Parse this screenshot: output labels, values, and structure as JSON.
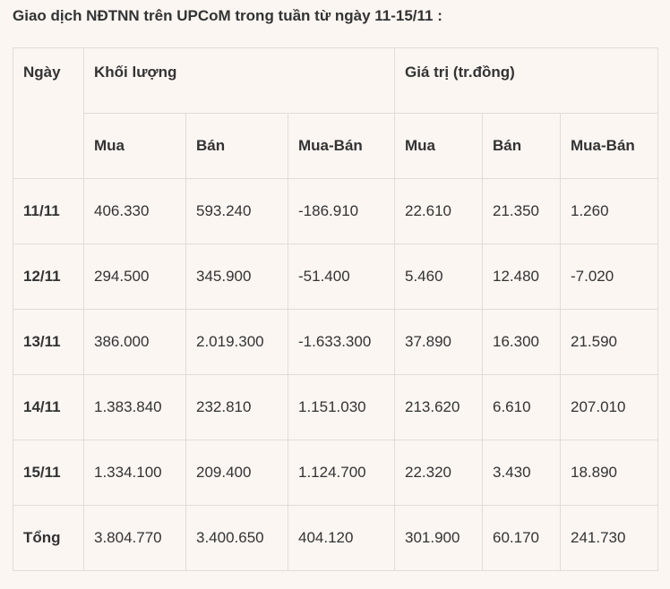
{
  "caption": "Giao dịch NĐTNN trên UPCoM trong tuần từ ngày 11-15/11 :",
  "table": {
    "header": {
      "day": "Ngày",
      "volume_group": "Khối lượng",
      "value_group": "Giá trị (tr.đồng)",
      "sub": [
        "Mua",
        "Bán",
        "Mua-Bán",
        "Mua",
        "Bán",
        "Mua-Bán"
      ]
    },
    "rows": [
      [
        "11/11",
        "406.330",
        "593.240",
        "-186.910",
        "22.610",
        "21.350",
        "1.260"
      ],
      [
        "12/11",
        "294.500",
        "345.900",
        "-51.400",
        "5.460",
        "12.480",
        "-7.020"
      ],
      [
        "13/11",
        "386.000",
        "2.019.300",
        "-1.633.300",
        "37.890",
        "16.300",
        "21.590"
      ],
      [
        "14/11",
        "1.383.840",
        "232.810",
        "1.151.030",
        "213.620",
        "6.610",
        "207.010"
      ],
      [
        "15/11",
        "1.334.100",
        "209.400",
        "1.124.700",
        "22.320",
        "3.430",
        "18.890"
      ],
      [
        "Tổng",
        "3.804.770",
        "3.400.650",
        "404.120",
        "301.900",
        "60.170",
        "241.730"
      ]
    ]
  }
}
